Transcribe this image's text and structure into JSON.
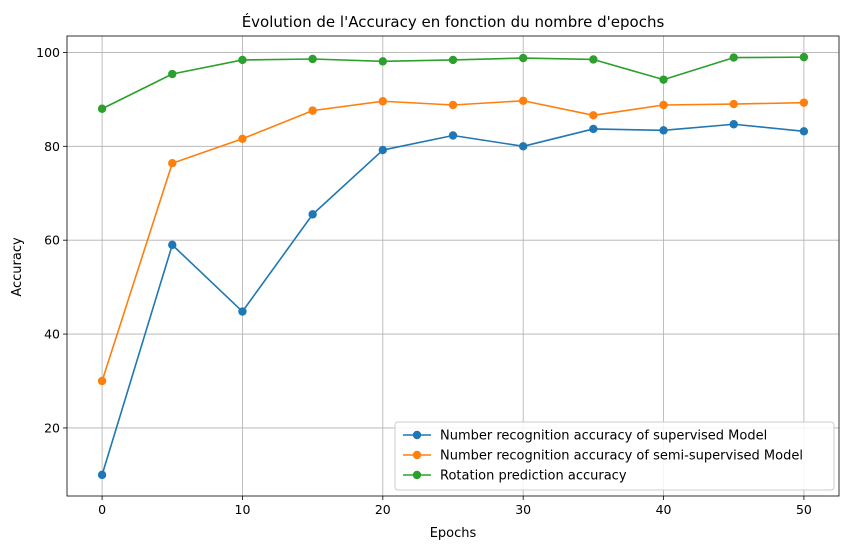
{
  "chart_data": {
    "type": "line",
    "title": "Évolution de l'Accuracy en fonction du nombre d'epochs",
    "xlabel": "Epochs",
    "ylabel": "Accuracy",
    "x": [
      0,
      5,
      10,
      15,
      20,
      25,
      30,
      35,
      40,
      45,
      50
    ],
    "xlim": [
      -2.5,
      52.5
    ],
    "ylim": [
      5.5,
      103.5
    ],
    "xticks": [
      0,
      10,
      20,
      30,
      40,
      50
    ],
    "yticks": [
      20,
      40,
      60,
      80,
      100
    ],
    "grid": true,
    "legend_position": "lower-right",
    "series": [
      {
        "name": "Number recognition accuracy of supervised Model",
        "color": "#1f77b4",
        "marker": "circle",
        "values": [
          10.0,
          59.0,
          44.8,
          65.5,
          79.2,
          82.3,
          80.0,
          83.7,
          83.4,
          84.7,
          83.2
        ]
      },
      {
        "name": "Number recognition accuracy of semi-supervised Model",
        "color": "#ff7f0e",
        "marker": "circle",
        "values": [
          30.0,
          76.4,
          81.6,
          87.6,
          89.6,
          88.8,
          89.7,
          86.6,
          88.8,
          89.0,
          89.3
        ]
      },
      {
        "name": "Rotation prediction accuracy",
        "color": "#2ca02c",
        "marker": "circle",
        "values": [
          88.0,
          95.4,
          98.4,
          98.6,
          98.1,
          98.4,
          98.8,
          98.5,
          94.2,
          98.9,
          99.0
        ]
      }
    ]
  }
}
